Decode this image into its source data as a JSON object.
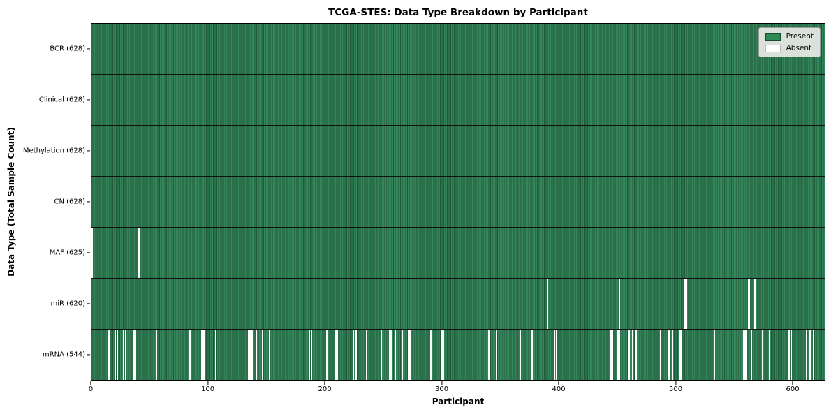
{
  "title": "TCGA-STES: Data Type Breakdown by Participant",
  "xlabel": "Participant",
  "ylabel": "Data Type (Total Sample Count)",
  "legend": {
    "present_label": "Present",
    "absent_label": "Absent"
  },
  "colors": {
    "present_solid": "#2e8b57",
    "present_fill": "#35855c",
    "present_edge": "#1e5a38",
    "absent_fill": "#ffffff",
    "row_separator": "#101010"
  },
  "chart_data": {
    "type": "heatmap",
    "title": "TCGA-STES: Data Type Breakdown by Participant",
    "xlabel": "Participant",
    "ylabel": "Data Type (Total Sample Count)",
    "x_ticks": [
      0,
      100,
      200,
      300,
      400,
      500,
      600
    ],
    "x_range": [
      0,
      628
    ],
    "n_participants": 628,
    "legend_entries": [
      "Present",
      "Absent"
    ],
    "legend_position": "upper right",
    "rows": [
      {
        "name": "BCR",
        "label": "BCR (628)",
        "present_count": 628,
        "absent_participants": []
      },
      {
        "name": "Clinical",
        "label": "Clinical (628)",
        "present_count": 628,
        "absent_participants": []
      },
      {
        "name": "Methylation",
        "label": "Methylation (628)",
        "present_count": 628,
        "absent_participants": []
      },
      {
        "name": "CN",
        "label": "CN (628)",
        "present_count": 628,
        "absent_participants": []
      },
      {
        "name": "MAF",
        "label": "MAF (625)",
        "present_count": 625,
        "absent_participants": [
          0,
          40,
          208
        ]
      },
      {
        "name": "miR",
        "label": "miR (620)",
        "present_count": 620,
        "absent_participants": [
          390,
          452,
          508,
          509,
          562,
          563,
          567,
          568
        ]
      },
      {
        "name": "mRNA",
        "label": "mRNA (544)",
        "present_count": 544,
        "absent_participants": [
          14,
          15,
          20,
          22,
          27,
          29,
          36,
          37,
          55,
          84,
          94,
          95,
          96,
          106,
          134,
          135,
          136,
          137,
          141,
          144,
          146,
          152,
          156,
          178,
          186,
          188,
          201,
          208,
          209,
          210,
          224,
          226,
          235,
          245,
          248,
          255,
          256,
          257,
          260,
          263,
          266,
          271,
          272,
          273,
          290,
          297,
          299,
          300,
          301,
          340,
          346,
          367,
          377,
          388,
          396,
          398,
          444,
          445,
          446,
          450,
          451,
          452,
          460,
          463,
          466,
          487,
          494,
          497,
          503,
          504,
          505,
          533,
          558,
          559,
          560,
          565,
          574,
          580,
          597,
          599,
          612,
          615,
          618,
          620
        ]
      }
    ]
  }
}
